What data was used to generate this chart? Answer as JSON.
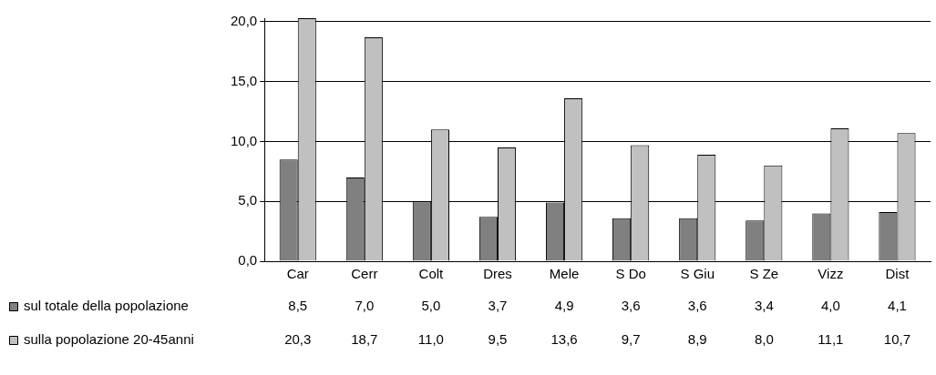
{
  "chart_data": {
    "type": "bar",
    "categories": [
      "Car",
      "Cerr",
      "Colt",
      "Dres",
      "Mele",
      "S Do",
      "S Giu",
      "S Ze",
      "Vizz",
      "Dist"
    ],
    "series": [
      {
        "name": "sul totale della popolazione",
        "color": "#808080",
        "values": [
          8.5,
          7.0,
          5.0,
          3.7,
          4.9,
          3.6,
          3.6,
          3.4,
          4.0,
          4.1
        ],
        "value_labels": [
          "8,5",
          "7,0",
          "5,0",
          "3,7",
          "4,9",
          "3,6",
          "3,6",
          "3,4",
          "4,0",
          "4,1"
        ]
      },
      {
        "name": "sulla popolazione 20-45anni",
        "color": "#c0c0c0",
        "values": [
          20.3,
          18.7,
          11.0,
          9.5,
          13.6,
          9.7,
          8.9,
          8.0,
          11.1,
          10.7
        ],
        "value_labels": [
          "20,3",
          "18,7",
          "11,0",
          "9,5",
          "13,6",
          "9,7",
          "8,9",
          "8,0",
          "11,1",
          "10,7"
        ]
      }
    ],
    "ylim": [
      0,
      20.3
    ],
    "yticks": [
      {
        "value": 0,
        "label": "0,0"
      },
      {
        "value": 5,
        "label": "5,0"
      },
      {
        "value": 10,
        "label": "10,0"
      },
      {
        "value": 15,
        "label": "15,0"
      },
      {
        "value": 20,
        "label": "20,0"
      }
    ],
    "grid": "y",
    "legend": "bottom"
  }
}
